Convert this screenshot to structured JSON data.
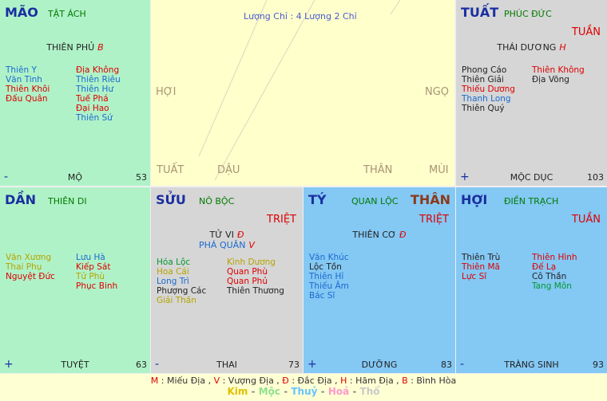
{
  "center": {
    "text": "Lượng Chỉ : 4 Lượng 2 Chỉ",
    "branches": [
      "HỢI",
      "NGỌ",
      "TUẤT",
      "DẬU",
      "THÂN",
      "MÙI"
    ]
  },
  "mark_color": "#dd0000",
  "cells": [
    {
      "name": "MÃO",
      "palace": "TẬT ÁCH",
      "bg": "#b0f2c8",
      "main": [
        {
          "name": "THIÊN PHỦ",
          "mark": "B"
        }
      ],
      "left": [
        {
          "name": "Thiên Y",
          "color": "#1a6ad0"
        },
        {
          "name": "Văn Tinh",
          "color": "#1a6ad0"
        },
        {
          "name": "Thiên Khôi",
          "color": "#dd0000"
        },
        {
          "name": "Đấu Quân",
          "color": "#dd0000"
        }
      ],
      "right": [
        {
          "name": "Địa Không",
          "color": "#dd0000"
        },
        {
          "name": "Thiên Riêu",
          "color": "#1a6ad0"
        },
        {
          "name": "Thiên Hư",
          "color": "#1a6ad0"
        },
        {
          "name": "Tuế Phá",
          "color": "#dd0000"
        },
        {
          "name": "Đại Hao",
          "color": "#dd0000"
        },
        {
          "name": "Thiên Sứ",
          "color": "#1a6ad0"
        }
      ],
      "sign": "-",
      "stage": "MỘ",
      "number": 53
    },
    {
      "name": "TUẤT",
      "palace": "PHÚC ĐỨC",
      "bg": "#d6d6d6",
      "extra": "TUẦN",
      "main": [
        {
          "name": "THÁI DƯƠNG",
          "mark": "H"
        }
      ],
      "left": [
        {
          "name": "Phong Cáo",
          "color": "#222222"
        },
        {
          "name": "Thiên Giải",
          "color": "#222222"
        },
        {
          "name": "Thiếu Dương",
          "color": "#dd0000"
        },
        {
          "name": "Thanh Long",
          "color": "#1a6ad0"
        },
        {
          "name": "Thiên Quý",
          "color": "#222222"
        }
      ],
      "right": [
        {
          "name": "Thiên Không",
          "color": "#dd0000"
        },
        {
          "name": "Địa Võng",
          "color": "#222222"
        }
      ],
      "sign": "+",
      "stage": "MỘC DỤC",
      "number": 103
    },
    {
      "name": "DẦN",
      "palace": "THIÊN DI",
      "bg": "#b0f2c8",
      "main": [],
      "left": [
        {
          "name": "Văn Xương",
          "color": "#b5a300"
        },
        {
          "name": "Thai Phụ",
          "color": "#b5a300"
        },
        {
          "name": "Nguyệt Đức",
          "color": "#dd0000"
        }
      ],
      "right": [
        {
          "name": "Lưu Hà",
          "color": "#1a6ad0"
        },
        {
          "name": "Kiếp Sát",
          "color": "#dd0000"
        },
        {
          "name": "Tử Phù",
          "color": "#b5a300"
        },
        {
          "name": "Phục Binh",
          "color": "#dd0000"
        }
      ],
      "sign": "+",
      "stage": "TUYỆT",
      "number": 63
    },
    {
      "name": "SỬU",
      "palace": "NÔ BỘC",
      "bg": "#d6d6d6",
      "extra": "TRIỆT",
      "main": [
        {
          "name": "TỬ VI",
          "mark": "Đ"
        },
        {
          "name": "PHÁ QUÂN",
          "mark": "V"
        }
      ],
      "left": [
        {
          "name": "Hóa Lộc",
          "color": "#009933"
        },
        {
          "name": "Hoa Cái",
          "color": "#b5a300"
        },
        {
          "name": "Long Trì",
          "color": "#1a6ad0"
        },
        {
          "name": "Phượng Các",
          "color": "#222222"
        },
        {
          "name": "Giải Thần",
          "color": "#b5a300"
        }
      ],
      "right": [
        {
          "name": "Kình Dương",
          "color": "#b5a300"
        },
        {
          "name": "Quan Phù",
          "color": "#dd0000"
        },
        {
          "name": "Quan Phủ",
          "color": "#dd0000"
        },
        {
          "name": "Thiên Thương",
          "color": "#222222"
        }
      ],
      "sign": "-",
      "stage": "THAI",
      "number": 73
    },
    {
      "name": "TÝ",
      "palace": "QUAN LỘC",
      "bg": "#84c8f4",
      "tag": "THÂN",
      "extra": "TRIỆT",
      "main": [
        {
          "name": "THIÊN CƠ",
          "mark": "Đ"
        }
      ],
      "left": [
        {
          "name": "Văn Khúc",
          "color": "#1a6ad0"
        },
        {
          "name": "Lộc Tồn",
          "color": "#222222"
        },
        {
          "name": "Thiên Hỉ",
          "color": "#1a6ad0"
        },
        {
          "name": "Thiếu Âm",
          "color": "#1a6ad0"
        },
        {
          "name": "Bác Sĩ",
          "color": "#1a6ad0"
        }
      ],
      "right": [],
      "sign": "+",
      "stage": "DƯỠNG",
      "number": 83
    },
    {
      "name": "HỢI",
      "palace": "ĐIỀN TRẠCH",
      "bg": "#84c8f4",
      "extra": "TUẦN",
      "main": [],
      "left": [
        {
          "name": "Thiên Trù",
          "color": "#222222"
        },
        {
          "name": "Thiên Mã",
          "color": "#dd0000"
        },
        {
          "name": "Lực Sĩ",
          "color": "#dd0000"
        }
      ],
      "right": [
        {
          "name": "Thiên Hình",
          "color": "#dd0000"
        },
        {
          "name": "Đế Lạ",
          "color": "#dd0000"
        },
        {
          "name": "Cô Thần",
          "color": "#222222"
        },
        {
          "name": "Tang Môn",
          "color": "#009933"
        }
      ],
      "sign": "-",
      "stage": "TRÀNG SINH",
      "number": 93
    }
  ],
  "legend": [
    [
      {
        "text": "M",
        "color": "#dd0000"
      },
      {
        "text": " : Miếu Địa , ",
        "color": "#333333"
      },
      {
        "text": "V",
        "color": "#dd0000"
      },
      {
        "text": " : Vượng Địa , ",
        "color": "#333333"
      },
      {
        "text": "Đ",
        "color": "#dd0000"
      },
      {
        "text": " : Đắc Địa , ",
        "color": "#333333"
      },
      {
        "text": "H",
        "color": "#dd0000"
      },
      {
        "text": " : Hãm Địa , ",
        "color": "#333333"
      },
      {
        "text": "B",
        "color": "#dd0000"
      },
      {
        "text": " : Bình Hòa",
        "color": "#333333"
      }
    ],
    [
      {
        "text": "Kim",
        "color": "#e0c000"
      },
      {
        "text": " - ",
        "color": "#888888"
      },
      {
        "text": "Mộc",
        "color": "#8fe08f"
      },
      {
        "text": " - ",
        "color": "#888888"
      },
      {
        "text": "Thuỷ",
        "color": "#66c4ff"
      },
      {
        "text": " - ",
        "color": "#888888"
      },
      {
        "text": "Hoả",
        "color": "#ff99cc"
      },
      {
        "text": " - ",
        "color": "#888888"
      },
      {
        "text": "Thổ",
        "color": "#c8c8c8"
      }
    ]
  ]
}
